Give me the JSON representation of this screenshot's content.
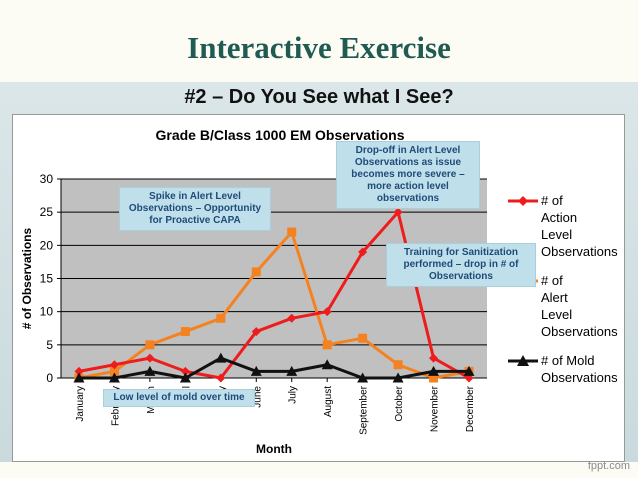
{
  "slide": {
    "title": "Interactive Exercise",
    "subtitle": "#2 – Do You See what I See?",
    "watermark": "fppt.com"
  },
  "chart_data": {
    "type": "line",
    "title": "Grade B/Class 1000 EM Observations",
    "xlabel": "Month",
    "ylabel": "# of Observations",
    "categories": [
      "January",
      "February",
      "March",
      "April",
      "May",
      "June",
      "July",
      "August",
      "September",
      "October",
      "November",
      "December"
    ],
    "ylim": [
      0,
      30
    ],
    "yticks": [
      0,
      5,
      10,
      15,
      20,
      25,
      30
    ],
    "grid": true,
    "legend_position": "right",
    "series": [
      {
        "name": "# of Action Level Observations",
        "color": "#ee1c1c",
        "marker": "diamond",
        "values": [
          1,
          2,
          3,
          1,
          0,
          7,
          9,
          10,
          19,
          25,
          3,
          0
        ]
      },
      {
        "name": "# of Alert Level Observations",
        "color": "#f58220",
        "marker": "square",
        "values": [
          0,
          1,
          5,
          7,
          9,
          16,
          22,
          5,
          6,
          2,
          0,
          1
        ]
      },
      {
        "name": "# of Mold Observations",
        "color": "#111111",
        "marker": "triangle",
        "values": [
          0,
          0,
          1,
          0,
          3,
          1,
          1,
          2,
          0,
          0,
          1,
          1
        ]
      }
    ]
  },
  "callouts": {
    "dropoff": "Drop-off in Alert Level Observations as issue becomes more severe – more action level observations",
    "spike": "Spike in Alert Level Observations – Opportunity for Proactive CAPA",
    "training": "Training for Sanitization performed – drop in # of Observations",
    "mold": "Low level of mold over time"
  }
}
